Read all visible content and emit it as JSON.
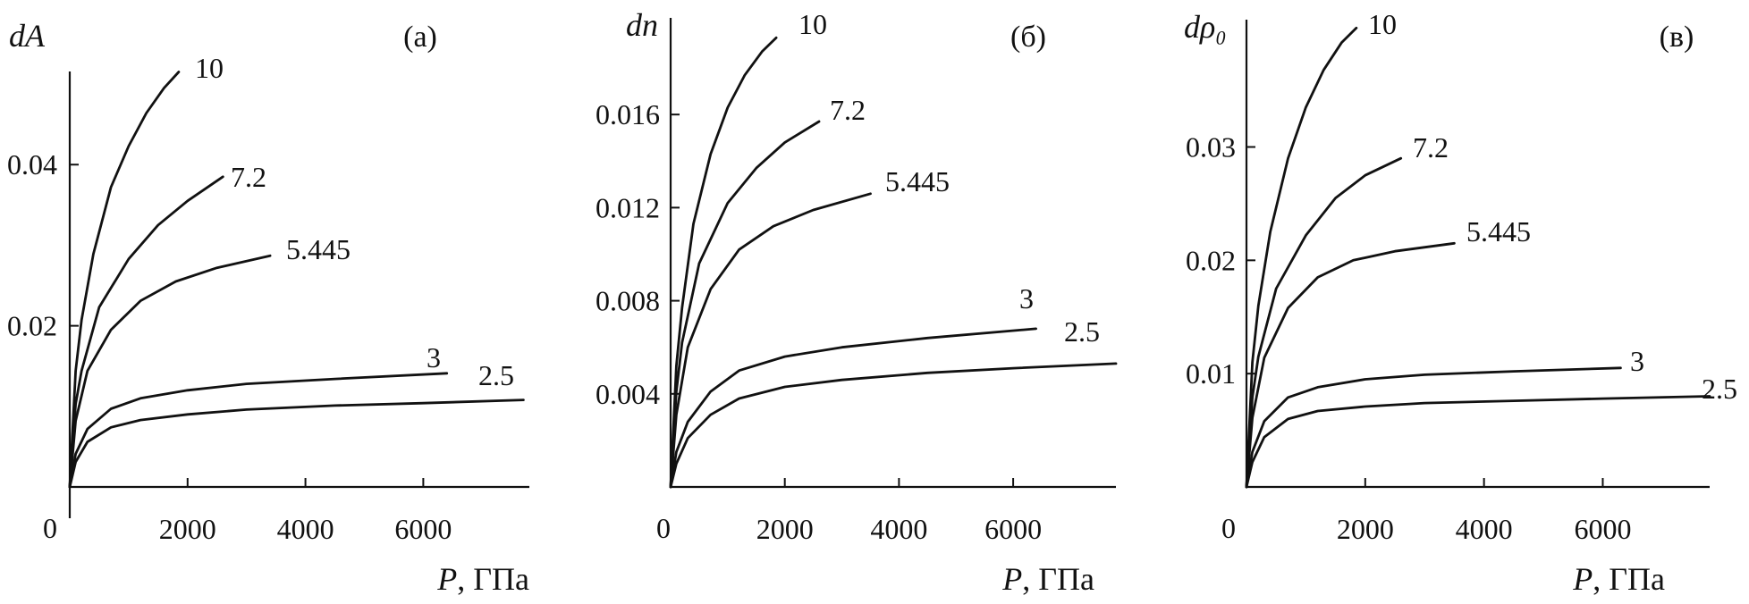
{
  "figure_type": "three-panel line chart",
  "chart_data": [
    {
      "type": "line",
      "panel_label": "(а)",
      "ylabel": "dA",
      "xlabel": "P, ГПа",
      "origin_label": "0",
      "xlim": [
        0,
        7800
      ],
      "ylim": [
        0,
        0.053
      ],
      "xticks": [
        2000,
        4000,
        6000
      ],
      "xtick_labels": [
        "2000",
        "4000",
        "6000"
      ],
      "yticks": [
        0.02,
        0.04
      ],
      "ytick_labels": [
        "0.02",
        "0.04"
      ],
      "grid": false,
      "series": [
        {
          "name": "10",
          "x": [
            0,
            100,
            200,
            400,
            700,
            1000,
            1300,
            1600,
            1850
          ],
          "y": [
            0,
            0.0144,
            0.0207,
            0.0289,
            0.0372,
            0.0423,
            0.0464,
            0.0495,
            0.0515
          ]
        },
        {
          "name": "7.2",
          "x": [
            0,
            100,
            200,
            500,
            1000,
            1500,
            2000,
            2600
          ],
          "y": [
            0,
            0.0103,
            0.0144,
            0.0223,
            0.0283,
            0.0325,
            0.0355,
            0.0385
          ]
        },
        {
          "name": "5.445",
          "x": [
            0,
            100,
            300,
            700,
            1200,
            1800,
            2500,
            3400
          ],
          "y": [
            0,
            0.0082,
            0.0144,
            0.0195,
            0.0231,
            0.0255,
            0.0272,
            0.0287
          ]
        },
        {
          "name": "3",
          "x": [
            0,
            100,
            300,
            700,
            1200,
            2000,
            3000,
            4500,
            6400
          ],
          "y": [
            0,
            0.0041,
            0.0072,
            0.0097,
            0.011,
            0.012,
            0.0128,
            0.0134,
            0.0141
          ]
        },
        {
          "name": "2.5",
          "x": [
            0,
            100,
            300,
            700,
            1200,
            2000,
            3000,
            4500,
            6000,
            7700
          ],
          "y": [
            0,
            0.0031,
            0.0056,
            0.0074,
            0.0083,
            0.009,
            0.0096,
            0.0101,
            0.0104,
            0.0108
          ]
        }
      ]
    },
    {
      "type": "line",
      "panel_label": "(б)",
      "ylabel": "dn",
      "xlabel": "P, ГПа",
      "origin_label": "0",
      "xlim": [
        0,
        7800
      ],
      "ylim": [
        0,
        0.0195
      ],
      "xticks": [
        2000,
        4000,
        6000
      ],
      "xtick_labels": [
        "2000",
        "4000",
        "6000"
      ],
      "yticks": [
        0.004,
        0.008,
        0.012,
        0.016
      ],
      "ytick_labels": [
        "0.004",
        "0.008",
        "0.012",
        "0.016"
      ],
      "grid": false,
      "series": [
        {
          "name": "10",
          "x": [
            0,
            100,
            200,
            400,
            700,
            1000,
            1300,
            1600,
            1850
          ],
          "y": [
            0,
            0.0052,
            0.0077,
            0.0113,
            0.0143,
            0.0163,
            0.0177,
            0.0187,
            0.0193
          ]
        },
        {
          "name": "7.2",
          "x": [
            0,
            100,
            200,
            500,
            1000,
            1500,
            2000,
            2600
          ],
          "y": [
            0,
            0.0041,
            0.0062,
            0.0096,
            0.0122,
            0.0137,
            0.0148,
            0.0157
          ]
        },
        {
          "name": "5.445",
          "x": [
            0,
            100,
            300,
            700,
            1200,
            1800,
            2500,
            3500
          ],
          "y": [
            0,
            0.0031,
            0.006,
            0.0085,
            0.0102,
            0.0112,
            0.0119,
            0.0126
          ]
        },
        {
          "name": "3",
          "x": [
            0,
            100,
            300,
            700,
            1200,
            2000,
            3000,
            4500,
            6400
          ],
          "y": [
            0,
            0.0015,
            0.0028,
            0.0041,
            0.005,
            0.0056,
            0.006,
            0.0064,
            0.0068
          ]
        },
        {
          "name": "2.5",
          "x": [
            0,
            100,
            300,
            700,
            1200,
            2000,
            3000,
            4500,
            6000,
            7800
          ],
          "y": [
            0,
            0.001,
            0.0021,
            0.0031,
            0.0038,
            0.0043,
            0.0046,
            0.0049,
            0.0051,
            0.0053
          ]
        }
      ]
    },
    {
      "type": "line",
      "panel_label": "(в)",
      "ylabel": "dρ₀",
      "xlabel": "P, ГПа",
      "origin_label": "0",
      "xlim": [
        0,
        7800
      ],
      "ylim": [
        0,
        0.041
      ],
      "xticks": [
        2000,
        4000,
        6000
      ],
      "xtick_labels": [
        "2000",
        "4000",
        "6000"
      ],
      "yticks": [
        0.01,
        0.02,
        0.03
      ],
      "ytick_labels": [
        "0.01",
        "0.02",
        "0.03"
      ],
      "grid": false,
      "series": [
        {
          "name": "10",
          "x": [
            0,
            100,
            200,
            400,
            700,
            1000,
            1300,
            1600,
            1850
          ],
          "y": [
            0,
            0.011,
            0.016,
            0.0225,
            0.029,
            0.0335,
            0.0368,
            0.0392,
            0.0405
          ]
        },
        {
          "name": "7.2",
          "x": [
            0,
            100,
            200,
            500,
            1000,
            1500,
            2000,
            2600
          ],
          "y": [
            0,
            0.0079,
            0.0115,
            0.0175,
            0.0222,
            0.0255,
            0.0275,
            0.029
          ]
        },
        {
          "name": "5.445",
          "x": [
            0,
            100,
            300,
            700,
            1200,
            1800,
            2500,
            3500
          ],
          "y": [
            0,
            0.0061,
            0.0114,
            0.0158,
            0.0185,
            0.02,
            0.0208,
            0.0215
          ]
        },
        {
          "name": "3",
          "x": [
            0,
            100,
            300,
            700,
            1200,
            2000,
            3000,
            4500,
            6300
          ],
          "y": [
            0,
            0.0031,
            0.0058,
            0.0079,
            0.0088,
            0.0095,
            0.0099,
            0.0102,
            0.0105
          ]
        },
        {
          "name": "2.5",
          "x": [
            0,
            100,
            300,
            700,
            1200,
            2000,
            3000,
            4500,
            6000,
            7800
          ],
          "y": [
            0,
            0.0022,
            0.0044,
            0.006,
            0.0067,
            0.0071,
            0.0074,
            0.0076,
            0.0078,
            0.008
          ]
        }
      ]
    }
  ]
}
